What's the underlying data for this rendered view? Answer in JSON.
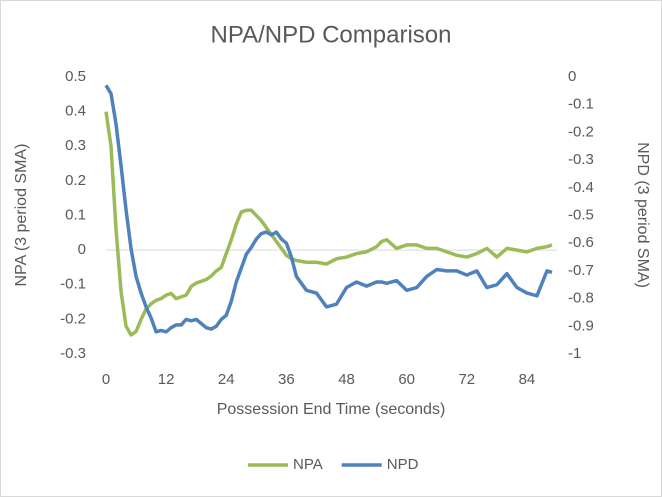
{
  "chart_data": {
    "type": "line",
    "title": "NPA/NPD Comparison",
    "xlabel": "Possession End Time (seconds)",
    "ylabel": "NPA (3 period SMA)",
    "y2label": "NPD (3 period SMA)",
    "x": [
      0,
      1,
      2,
      3,
      4,
      5,
      6,
      7,
      8,
      9,
      10,
      11,
      12,
      13,
      14,
      15,
      16,
      17,
      18,
      19,
      20,
      21,
      22,
      23,
      24,
      25,
      26,
      27,
      28,
      29,
      30,
      31,
      32,
      33,
      34,
      35,
      36,
      37,
      38,
      40,
      42,
      44,
      46,
      48,
      50,
      52,
      54,
      55,
      56,
      58,
      60,
      62,
      64,
      66,
      68,
      70,
      72,
      74,
      76,
      78,
      80,
      82,
      84,
      86,
      88,
      89
    ],
    "series": [
      {
        "name": "NPA",
        "color": "#9bbb59",
        "values": [
          0.4,
          0.3,
          0.06,
          -0.12,
          -0.22,
          -0.245,
          -0.235,
          -0.2,
          -0.17,
          -0.155,
          -0.145,
          -0.14,
          -0.13,
          -0.125,
          -0.14,
          -0.135,
          -0.13,
          -0.105,
          -0.095,
          -0.09,
          -0.085,
          -0.075,
          -0.06,
          -0.05,
          -0.01,
          0.03,
          0.075,
          0.11,
          0.115,
          0.115,
          0.1,
          0.085,
          0.065,
          0.045,
          0.025,
          0.005,
          -0.015,
          -0.025,
          -0.03,
          -0.035,
          -0.035,
          -0.04,
          -0.025,
          -0.02,
          -0.01,
          -0.005,
          0.01,
          0.025,
          0.03,
          0.005,
          0.015,
          0.015,
          0.005,
          0.005,
          -0.005,
          -0.015,
          -0.02,
          -0.01,
          0.005,
          -0.02,
          0.005,
          0,
          -0.005,
          0.005,
          0.01,
          0.015
        ]
      },
      {
        "name": "NPD",
        "color": "#4f81bd",
        "axis": "y2",
        "values": [
          -0.03,
          -0.06,
          -0.17,
          -0.32,
          -0.48,
          -0.62,
          -0.72,
          -0.78,
          -0.83,
          -0.87,
          -0.92,
          -0.915,
          -0.92,
          -0.905,
          -0.895,
          -0.895,
          -0.875,
          -0.88,
          -0.875,
          -0.89,
          -0.905,
          -0.91,
          -0.9,
          -0.875,
          -0.86,
          -0.81,
          -0.74,
          -0.69,
          -0.64,
          -0.615,
          -0.585,
          -0.565,
          -0.56,
          -0.57,
          -0.56,
          -0.585,
          -0.6,
          -0.65,
          -0.72,
          -0.77,
          -0.78,
          -0.83,
          -0.82,
          -0.76,
          -0.74,
          -0.755,
          -0.74,
          -0.74,
          -0.745,
          -0.735,
          -0.77,
          -0.76,
          -0.72,
          -0.695,
          -0.7,
          -0.7,
          -0.715,
          -0.7,
          -0.76,
          -0.75,
          -0.71,
          -0.76,
          -0.78,
          -0.79,
          -0.7,
          -0.705
        ]
      }
    ],
    "xlim": [
      0,
      90
    ],
    "xticks": [
      0,
      12,
      24,
      36,
      48,
      60,
      72,
      84
    ],
    "ylim": [
      -0.3,
      0.5
    ],
    "yticks": [
      0.5,
      0.4,
      0.3,
      0.2,
      0.1,
      0,
      -0.1,
      -0.2,
      -0.3
    ],
    "y2lim": [
      -1,
      0
    ],
    "y2ticks": [
      0,
      -0.1,
      -0.2,
      -0.3,
      -0.4,
      -0.5,
      -0.6,
      -0.7,
      -0.8,
      -0.9,
      -1
    ],
    "grid": false,
    "legend": "bottom"
  }
}
